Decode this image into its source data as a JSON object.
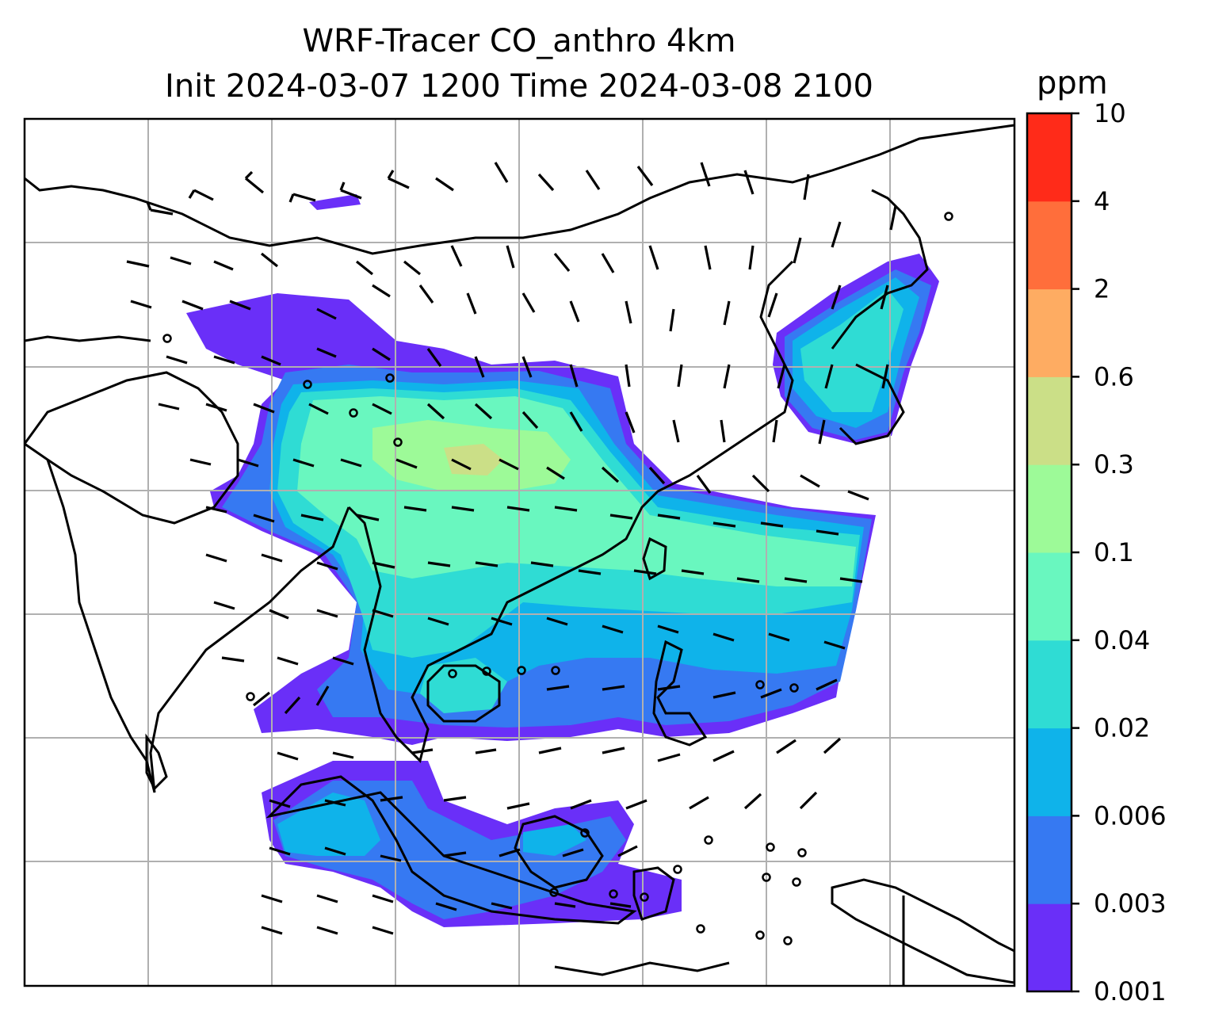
{
  "title": {
    "line1": "WRF-Tracer CO_anthro 4km",
    "line2": "Init 2024-03-07 1200 Time 2024-03-08 2100"
  },
  "colorbar": {
    "unit": "ppm",
    "ticks": [
      "0.001",
      "0.003",
      "0.006",
      "0.02",
      "0.04",
      "0.1",
      "0.3",
      "0.6",
      "2",
      "4",
      "10"
    ],
    "colors": [
      "#6a2ff8",
      "#3679f2",
      "#0fb3ea",
      "#2fdcd4",
      "#69f7bf",
      "#9dfa98",
      "#cbdf87",
      "#feac62",
      "#ff6e3b",
      "#ff2b19"
    ]
  },
  "map": {
    "region": "Southeast Asia / East Asia",
    "gridlines": true,
    "coastlines": true,
    "wind_barbs": true
  }
}
